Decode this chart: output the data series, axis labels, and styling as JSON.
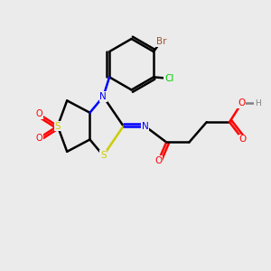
{
  "background_color": "#ebebeb",
  "atom_colors": {
    "Br": "#a0522d",
    "Cl": "#00cc00",
    "N": "#0000ff",
    "O": "#ff0000",
    "S": "#cccc00",
    "C": "#000000",
    "H": "#808080"
  },
  "figsize": [
    3.0,
    3.0
  ],
  "dpi": 100
}
